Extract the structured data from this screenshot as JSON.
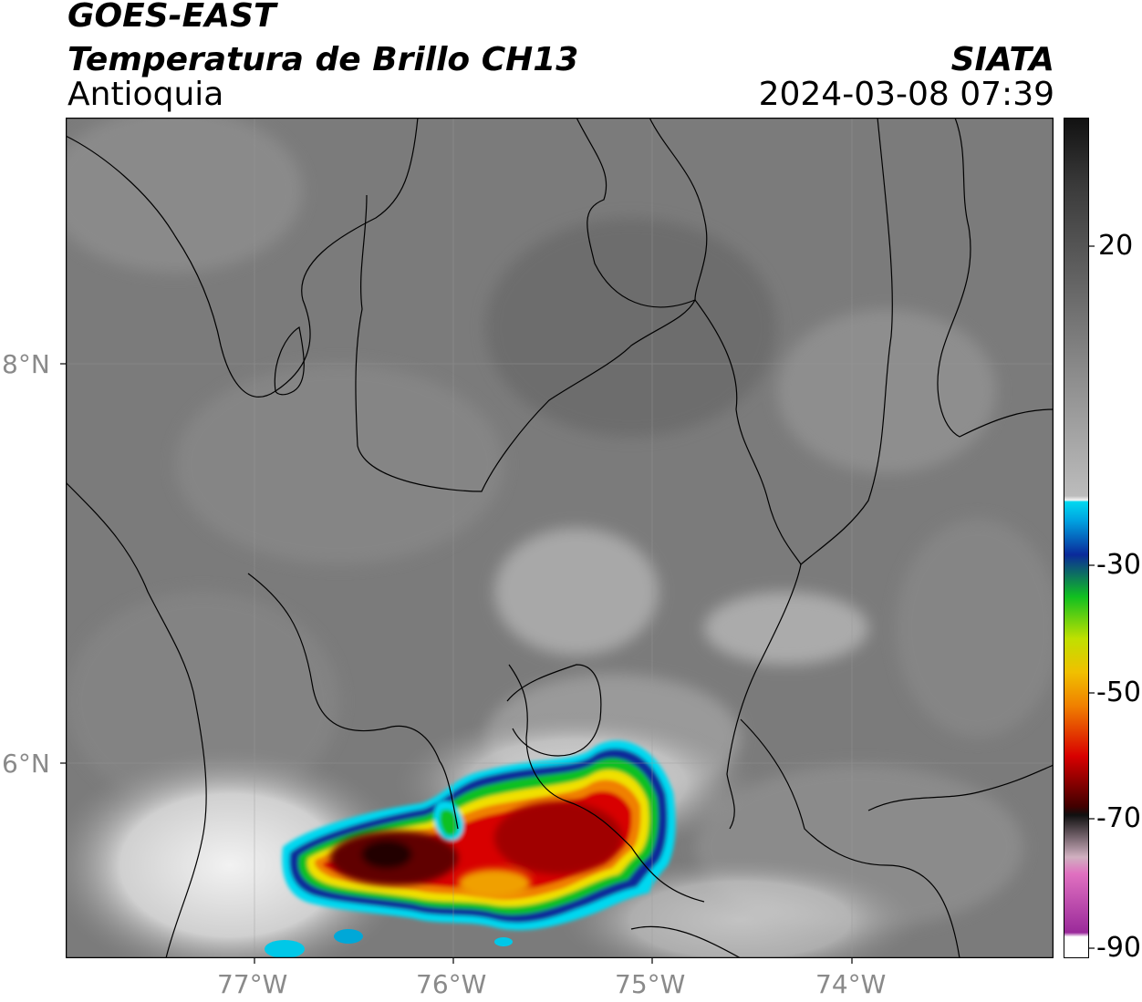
{
  "header": {
    "satellite": "GOES-EAST",
    "product": "Temperatura de Brillo CH13",
    "region": "Antioquia",
    "agency": "SIATA",
    "datetime": "2024-03-08 07:39"
  },
  "axes": {
    "lon_labels": [
      "77°W",
      "76°W",
      "75°W",
      "74°W"
    ],
    "lat_labels": [
      "8°N",
      "6°N"
    ]
  },
  "colorbar": {
    "ticks": [
      "20",
      "-30",
      "-50",
      "-70",
      "-90"
    ],
    "colors": {
      "warm_top": "#111111",
      "gray": "#8a8a8a",
      "white": "#f4f4f4",
      "cyan": "#00d8f0",
      "blue": "#0a2a9a",
      "green": "#10c020",
      "yellow": "#f0e000",
      "orange": "#f08000",
      "red": "#d80000",
      "darkred": "#400000",
      "pink": "#e070c0",
      "purple": "#9a2a9a"
    }
  },
  "map": {
    "background_gray": "#7a7a7a",
    "cold_cloud_colors": [
      "#00d8f0",
      "#0a2a9a",
      "#10c020",
      "#f0e000",
      "#f08000",
      "#d80000",
      "#400000"
    ]
  }
}
